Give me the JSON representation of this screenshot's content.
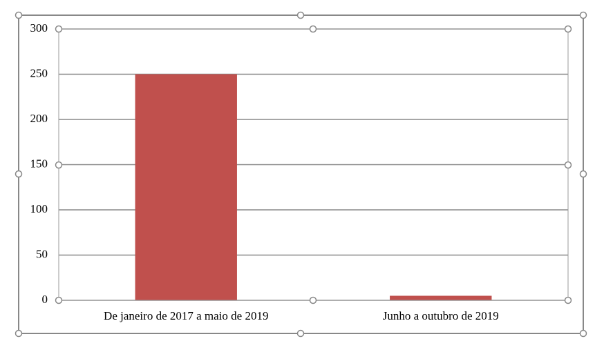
{
  "chart_data": {
    "type": "bar",
    "categories": [
      "De janeiro de 2017 a maio de 2019",
      "Junho a outubro de 2019"
    ],
    "values": [
      250,
      5
    ],
    "color": "#c0504d",
    "ylim": [
      0,
      300
    ],
    "yticks": [
      0,
      50,
      100,
      150,
      200,
      250,
      300
    ],
    "grid": true
  }
}
